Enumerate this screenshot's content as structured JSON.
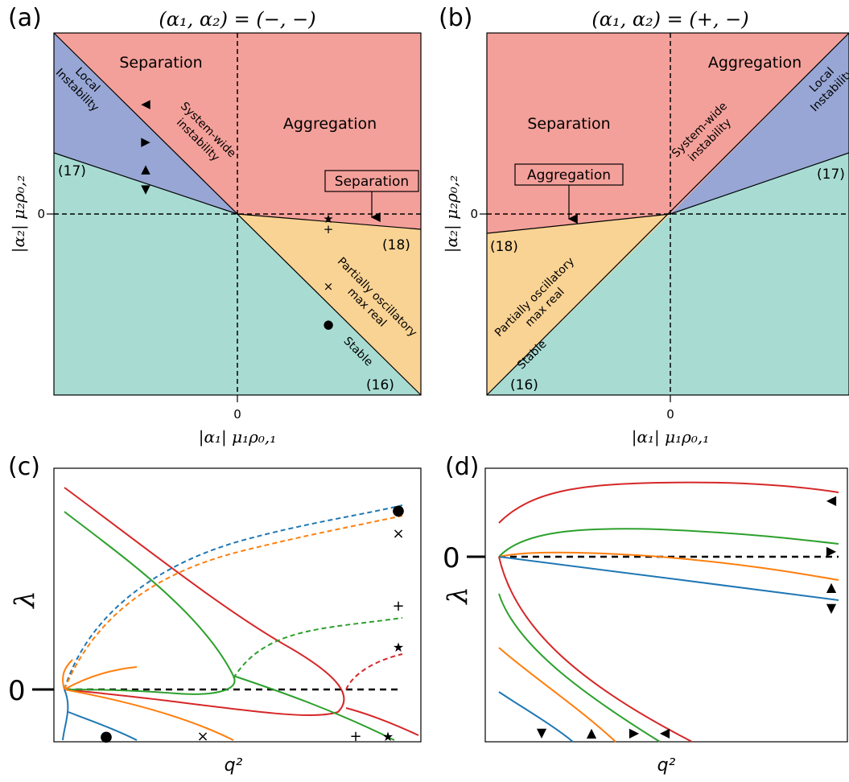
{
  "colors": {
    "red_region": "#f4a09a",
    "blue_region": "#97a6d4",
    "green_region": "#a8dcd3",
    "yellow_region": "#f9d394",
    "series_red": "#d62728",
    "series_green": "#2ca02c",
    "series_orange": "#ff7f0e",
    "series_blue": "#1f77b4"
  },
  "panel_a": {
    "label": "(a)",
    "title": "(α₁, α₂) = (−, −)",
    "regions": {
      "separation": "Separation",
      "aggregation": "Aggregation",
      "local_instability": [
        "Local",
        "Instability"
      ],
      "system_wide": [
        "System-wide",
        "instability"
      ],
      "partially_oscillatory": [
        "Partially oscillatory",
        "max real"
      ],
      "stable": "Stable"
    },
    "boxed_label": "Separation",
    "eq17": "(17)",
    "eq18": "(18)",
    "eq16": "(16)",
    "xtick": "0",
    "ytick": "0",
    "xlabel": "|α₁| μ₁ρ₀,₁",
    "ylabel": "|α₂| μ₂ρ₀,₂"
  },
  "panel_b": {
    "label": "(b)",
    "title": "(α₁, α₂) = (+, −)",
    "regions": {
      "separation": "Separation",
      "aggregation": "Aggregation",
      "local_instability": [
        "Local",
        "Instability"
      ],
      "system_wide": [
        "System-wide",
        "instability"
      ],
      "partially_oscillatory": [
        "Partially oscillatory",
        "max real"
      ],
      "stable": "Stable"
    },
    "boxed_label": "Aggregation",
    "eq17": "(17)",
    "eq18": "(18)",
    "eq16": "(16)",
    "xtick": "0",
    "ytick": "0",
    "xlabel": "|α₁| μ₁ρ₀,₁",
    "ylabel": "|α₂| μ₂ρ₀,₂"
  },
  "panel_c": {
    "label": "(c)",
    "ylabel": "λ",
    "xlabel": "q²",
    "ytick": "0",
    "markers": [
      "●",
      "×",
      "+",
      "★"
    ]
  },
  "panel_d": {
    "label": "(d)",
    "ylabel": "λ",
    "xlabel": "q²",
    "ytick": "0",
    "markers": [
      "◀",
      "▶",
      "▲",
      "▼"
    ]
  },
  "chart_data": [
    {
      "type": "area",
      "panel": "a",
      "title": "(α₁, α₂) = (−, −)",
      "xlabel": "|α₁| μ₁ρ₀,₁",
      "ylabel": "|α₂| μ₂ρ₀,₂",
      "xlim": [
        -1,
        1
      ],
      "ylim": [
        -1,
        1
      ],
      "regions": [
        {
          "name": "Separation",
          "color": "red"
        },
        {
          "name": "Aggregation",
          "color": "red"
        },
        {
          "name": "Local Instability",
          "color": "blue"
        },
        {
          "name": "Partially oscillatory max real",
          "color": "yellow"
        },
        {
          "name": "Stable",
          "color": "green"
        }
      ],
      "boundaries": [
        {
          "label": "(17)",
          "slope": -0.33
        },
        {
          "label": "(18)",
          "slope": -0.1
        },
        {
          "label": "(16)",
          "slope": -1.0
        },
        {
          "label": "System-wide instability",
          "slope": -1.0
        }
      ],
      "marker_points": [
        {
          "marker": "◀",
          "x": -0.6,
          "y": 0.6
        },
        {
          "marker": "▶",
          "x": -0.6,
          "y": 0.4
        },
        {
          "marker": "▲",
          "x": -0.6,
          "y": 0.25
        },
        {
          "marker": "▼",
          "x": -0.6,
          "y": 0.13
        },
        {
          "marker": "★",
          "x": 0.5,
          "y": -0.03
        },
        {
          "marker": "+",
          "x": 0.5,
          "y": -0.08
        },
        {
          "marker": "×",
          "x": 0.5,
          "y": -0.4
        },
        {
          "marker": "●",
          "x": 0.5,
          "y": -0.6
        }
      ]
    },
    {
      "type": "area",
      "panel": "b",
      "title": "(α₁, α₂) = (+, −)",
      "xlabel": "|α₁| μ₁ρ₀,₁",
      "ylabel": "|α₂| μ₂ρ₀,₂",
      "xlim": [
        -1,
        1
      ],
      "ylim": [
        -1,
        1
      ],
      "regions": [
        {
          "name": "Separation",
          "color": "red"
        },
        {
          "name": "Aggregation",
          "color": "red"
        },
        {
          "name": "Local Instability",
          "color": "blue"
        },
        {
          "name": "Partially oscillatory max real",
          "color": "yellow"
        },
        {
          "name": "Stable",
          "color": "green"
        }
      ],
      "boundaries": [
        {
          "label": "(17)",
          "slope": 0.33
        },
        {
          "label": "(18)",
          "slope": 0.1
        },
        {
          "label": "(16)",
          "slope": 1.0
        },
        {
          "label": "System-wide instability",
          "slope": 1.0
        }
      ]
    },
    {
      "type": "line",
      "panel": "c",
      "xlabel": "q²",
      "ylabel": "λ",
      "ylim": [
        -0.6,
        2.0
      ],
      "series": [
        {
          "color": "red",
          "style": "solid",
          "x": [
            0,
            0.2,
            0.4,
            0.6,
            0.8,
            0.95,
            0.8,
            0.6,
            0.4,
            0.2,
            0
          ],
          "y": [
            2.2,
            1.7,
            1.2,
            0.7,
            0.2,
            0,
            -0.15,
            -0.15,
            -0.1,
            -0.05,
            0
          ]
        },
        {
          "color": "green",
          "style": "solid",
          "x": [
            0,
            0.1,
            0.2,
            0.3,
            0.46,
            0.5,
            0.4,
            0.2,
            0.1,
            0
          ],
          "y": [
            1.9,
            1.6,
            1.2,
            0.8,
            0.2,
            0.1,
            0.05,
            0.02,
            0.01,
            0
          ]
        },
        {
          "color": "blue",
          "style": "dashed",
          "x": [
            0.03,
            0.2,
            0.4,
            0.6,
            0.8,
            1.0
          ],
          "y": [
            0.2,
            1.0,
            1.3,
            1.5,
            1.65,
            1.75
          ]
        },
        {
          "color": "orange",
          "style": "dashed",
          "x": [
            0.03,
            0.2,
            0.4,
            0.6,
            0.8,
            1.0
          ],
          "y": [
            0.15,
            0.9,
            1.2,
            1.4,
            1.55,
            1.65
          ]
        },
        {
          "color": "green",
          "style": "dashed",
          "x": [
            0.5,
            0.6,
            0.8,
            1.0
          ],
          "y": [
            0.1,
            0.5,
            0.75,
            0.9
          ]
        },
        {
          "color": "red",
          "style": "dashed",
          "x": [
            0.8,
            0.9,
            1.0
          ],
          "y": [
            0.05,
            0.3,
            0.4
          ]
        }
      ]
    },
    {
      "type": "line",
      "panel": "d",
      "xlabel": "q²",
      "ylabel": "λ",
      "series": [
        {
          "color": "red",
          "x": [
            0,
            0.2,
            0.5,
            1.0
          ],
          "y": [
            0.6,
            0.9,
            0.95,
            0.85
          ]
        },
        {
          "color": "green",
          "x": [
            0,
            0.2,
            0.5,
            1.0
          ],
          "y": [
            0,
            0.3,
            0.3,
            0.15
          ]
        },
        {
          "color": "orange",
          "x": [
            0,
            0.2,
            0.5,
            1.0
          ],
          "y": [
            0,
            0.05,
            -0.1,
            -0.3
          ]
        },
        {
          "color": "blue",
          "x": [
            0,
            0.2,
            0.5,
            1.0
          ],
          "y": [
            0,
            -0.1,
            -0.3,
            -0.55
          ]
        }
      ]
    }
  ]
}
